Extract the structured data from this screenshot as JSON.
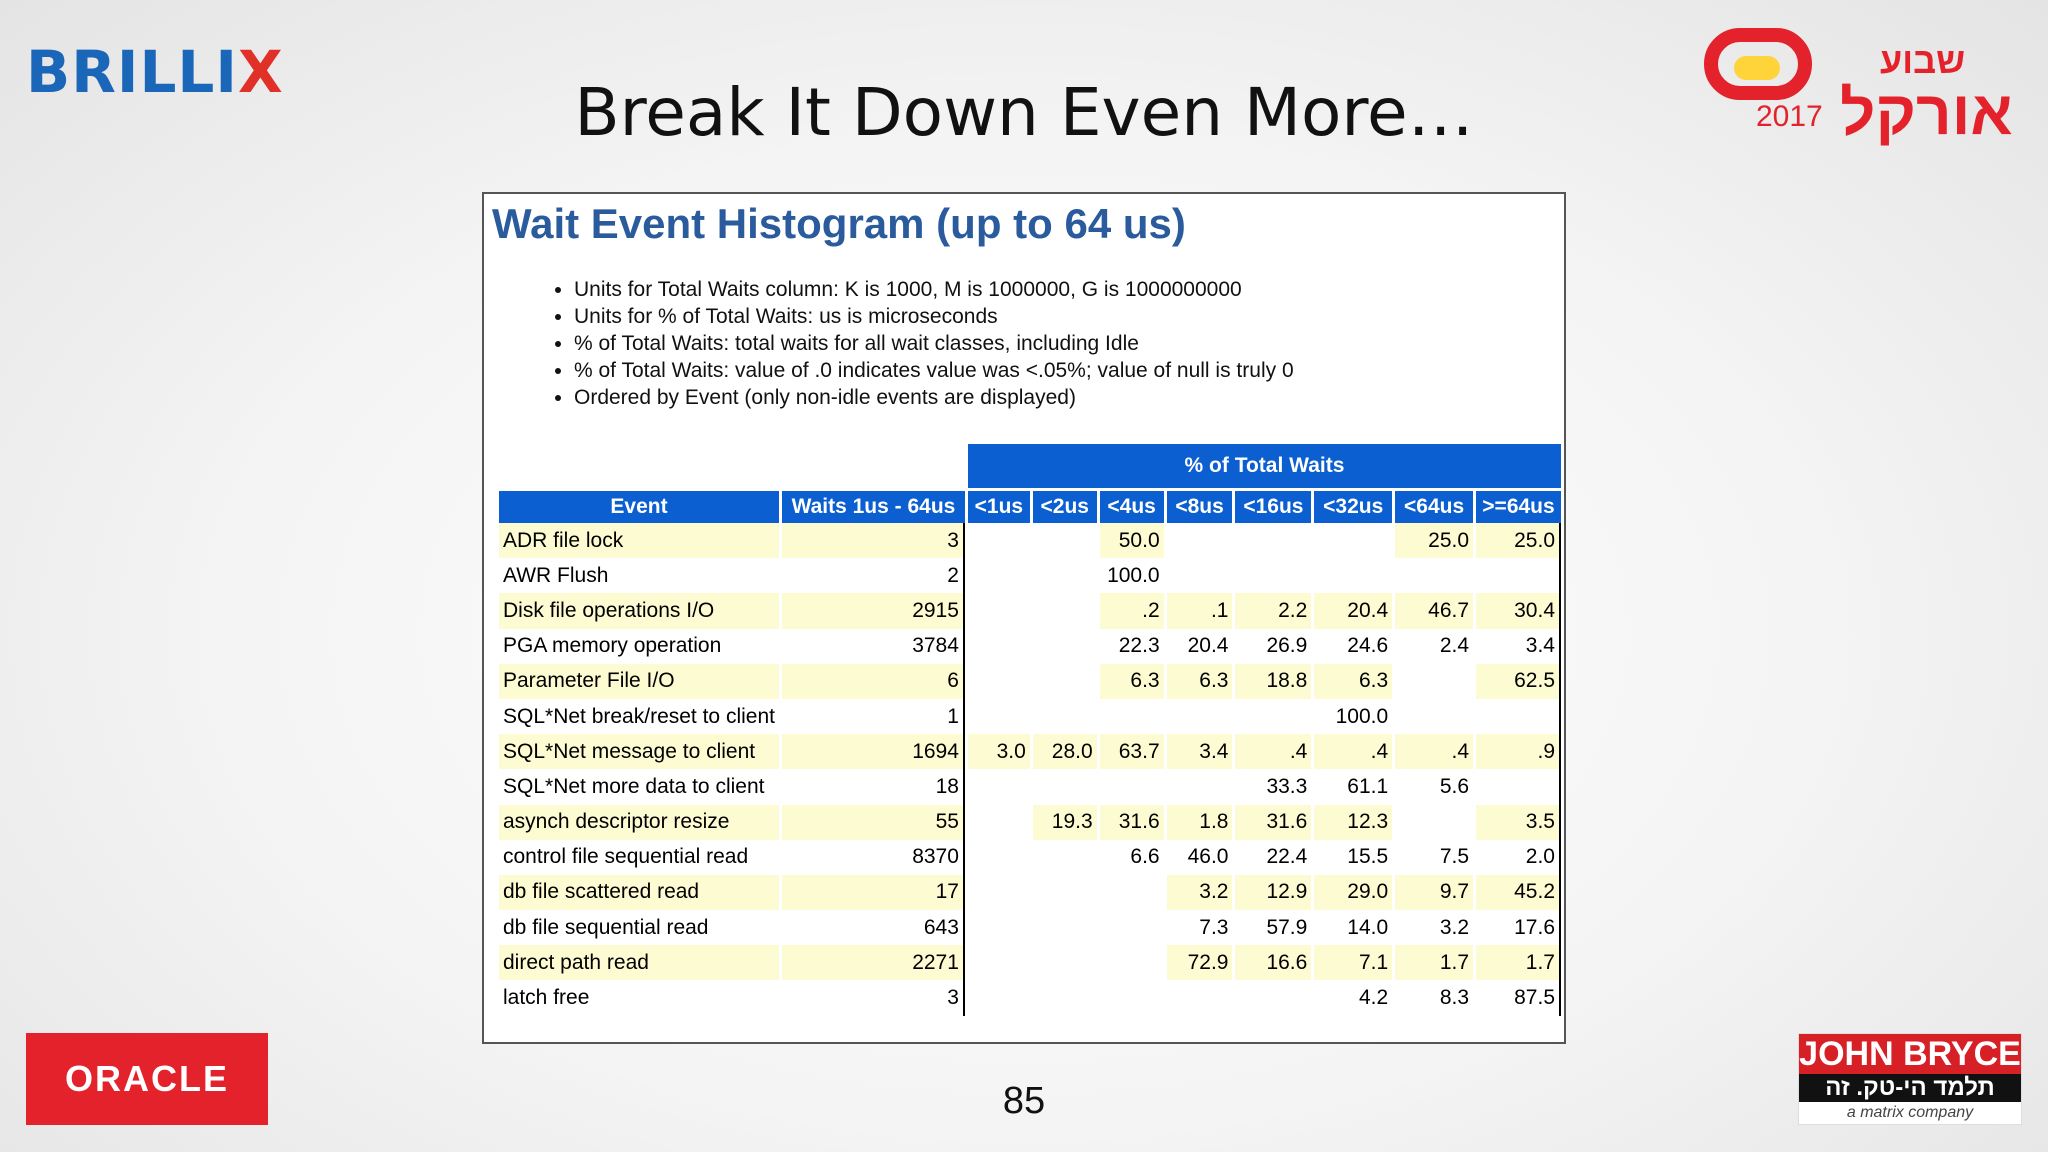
{
  "slide": {
    "title": "Break It Down Even More…",
    "page_number": "85",
    "logos": {
      "brillix_a": "BRILLI",
      "brillix_b": "X",
      "oracle": "ORACLE",
      "oracle_week_heb_small": "שבוע",
      "oracle_week_heb_big": "אורקל",
      "oracle_week_year": "2017",
      "john_bryce": "JOHN BRYCE",
      "john_bryce_tagline": "תלמד הי-טק. זה עובד!",
      "john_bryce_sub": "a matrix company"
    },
    "colors": {
      "header_blue": "#0b5fd0",
      "title_blue": "#2a5b9c",
      "row_yellow": "#fdfbd2",
      "brand_red": "#e3222b"
    }
  },
  "report": {
    "title": "Wait Event Histogram (up to 64 us)",
    "notes": [
      "Units for Total Waits column: K is 1000, M is 1000000, G is 1000000000",
      "Units for % of Total Waits: us is microseconds",
      "% of Total Waits: total waits for all wait classes, including Idle",
      "% of Total Waits: value of .0 indicates value was <.05%; value of null is truly 0",
      "Ordered by Event (only non-idle events are displayed)"
    ],
    "group_header": "% of Total Waits",
    "columns": [
      "Event",
      "Waits 1us - 64us",
      "<1us",
      "<2us",
      "<4us",
      "<8us",
      "<16us",
      "<32us",
      "<64us",
      ">=64us"
    ],
    "rows": [
      [
        "ADR file lock",
        "3",
        "",
        "",
        "50.0",
        "",
        "",
        "",
        "25.0",
        "25.0"
      ],
      [
        "AWR Flush",
        "2",
        "",
        "",
        "100.0",
        "",
        "",
        "",
        "",
        ""
      ],
      [
        "Disk file operations I/O",
        "2915",
        "",
        "",
        ".2",
        ".1",
        "2.2",
        "20.4",
        "46.7",
        "30.4"
      ],
      [
        "PGA memory operation",
        "3784",
        "",
        "",
        "22.3",
        "20.4",
        "26.9",
        "24.6",
        "2.4",
        "3.4"
      ],
      [
        "Parameter File I/O",
        "6",
        "",
        "",
        "6.3",
        "6.3",
        "18.8",
        "6.3",
        "",
        "62.5"
      ],
      [
        "SQL*Net break/reset to client",
        "1",
        "",
        "",
        "",
        "",
        "",
        "100.0",
        "",
        ""
      ],
      [
        "SQL*Net message to client",
        "1694",
        "3.0",
        "28.0",
        "63.7",
        "3.4",
        ".4",
        ".4",
        ".4",
        ".9"
      ],
      [
        "SQL*Net more data to client",
        "18",
        "",
        "",
        "",
        "",
        "33.3",
        "61.1",
        "5.6",
        ""
      ],
      [
        "asynch descriptor resize",
        "55",
        "",
        "19.3",
        "31.6",
        "1.8",
        "31.6",
        "12.3",
        "",
        "3.5"
      ],
      [
        "control file sequential read",
        "8370",
        "",
        "",
        "6.6",
        "46.0",
        "22.4",
        "15.5",
        "7.5",
        "2.0"
      ],
      [
        "db file scattered read",
        "17",
        "",
        "",
        "",
        "3.2",
        "12.9",
        "29.0",
        "9.7",
        "45.2"
      ],
      [
        "db file sequential read",
        "643",
        "",
        "",
        "",
        "7.3",
        "57.9",
        "14.0",
        "3.2",
        "17.6"
      ],
      [
        "direct path read",
        "2271",
        "",
        "",
        "",
        "72.9",
        "16.6",
        "7.1",
        "1.7",
        "1.7"
      ],
      [
        "latch free",
        "3",
        "",
        "",
        "",
        "",
        "",
        "4.2",
        "8.3",
        "87.5"
      ]
    ]
  }
}
